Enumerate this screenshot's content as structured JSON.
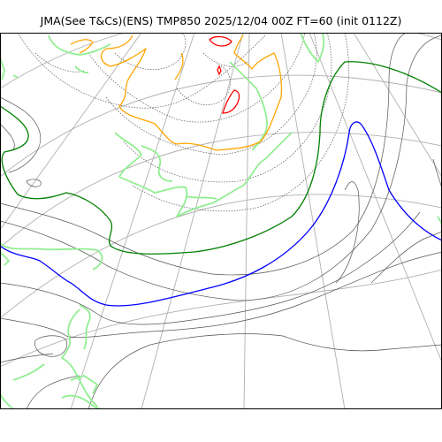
{
  "title": "JMA(See T&Cs)(ENS) TMP850 2025/12/04 00Z FT=60 (init 0112Z)",
  "colors": {
    "frame": "#000000",
    "graticule": "#b0b0b0",
    "coastline": "#90ee90",
    "isotherm_thin": "#555555",
    "isotherm_dotted": "#555555",
    "isotherm_green": "#008000",
    "isotherm_blue": "#0000ff",
    "isotherm_orange": "#ffa500",
    "isotherm_red": "#ff0000"
  }
}
